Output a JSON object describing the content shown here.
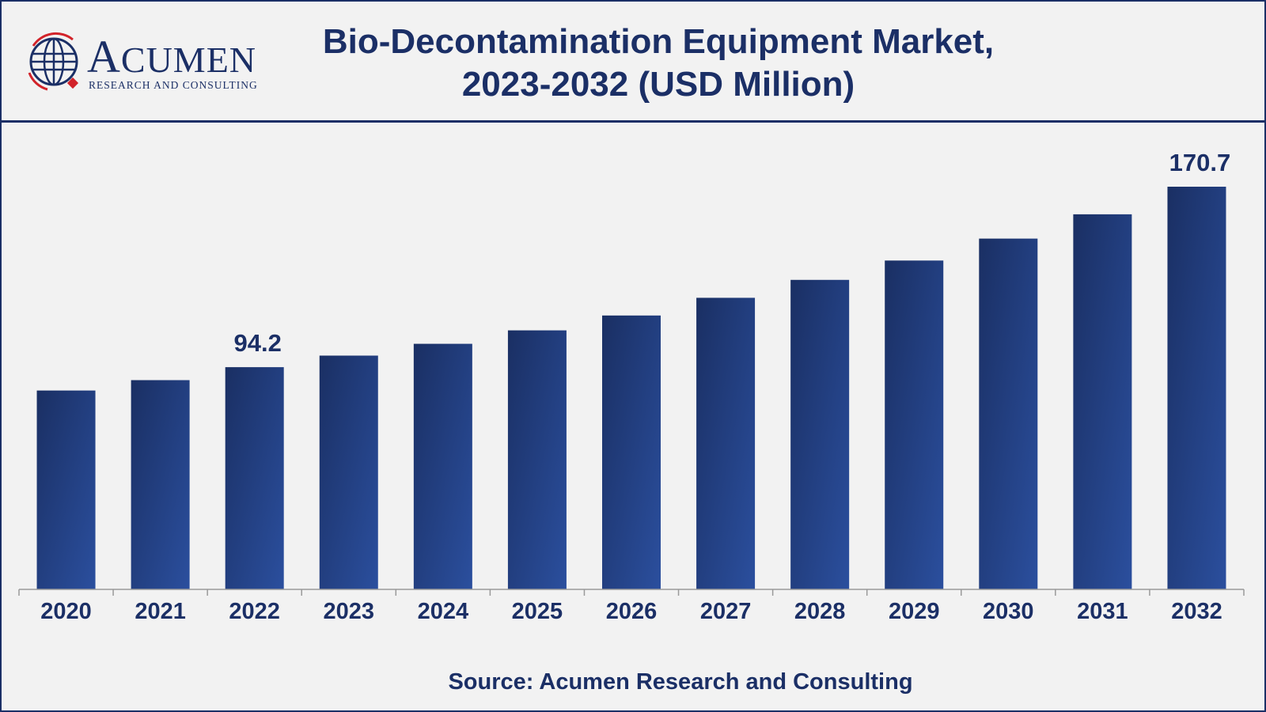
{
  "brand": {
    "name": "Acumen",
    "display_initial": "A",
    "display_rest": "CUMEN",
    "tagline": "RESEARCH AND CONSULTING"
  },
  "title": {
    "line1": "Bio-Decontamination Equipment Market,",
    "line2": "2023-2032 (USD Million)"
  },
  "source": "Source: Acumen Research and Consulting",
  "colors": {
    "bar_dark": "#1a2f63",
    "bar_light": "#2b4f9e",
    "text": "#1b2f66",
    "background": "#f2f2f2",
    "logo_red": "#d2232a"
  },
  "chart_data": {
    "type": "bar",
    "title": "Bio-Decontamination Equipment Market, 2023-2032 (USD Million)",
    "xlabel": "",
    "ylabel": "USD Million",
    "categories": [
      "2020",
      "2021",
      "2022",
      "2023",
      "2024",
      "2025",
      "2026",
      "2027",
      "2028",
      "2029",
      "2030",
      "2031",
      "2032"
    ],
    "values": [
      84.3,
      88.7,
      94.2,
      99.1,
      104.1,
      109.8,
      116.1,
      123.6,
      131.2,
      139.4,
      148.7,
      159.0,
      170.7
    ],
    "data_labels": [
      {
        "index": 2,
        "text": "94.2"
      },
      {
        "index": 12,
        "text": "170.7"
      }
    ],
    "ylim": [
      0,
      170.7
    ],
    "grid": false,
    "legend": "none"
  }
}
